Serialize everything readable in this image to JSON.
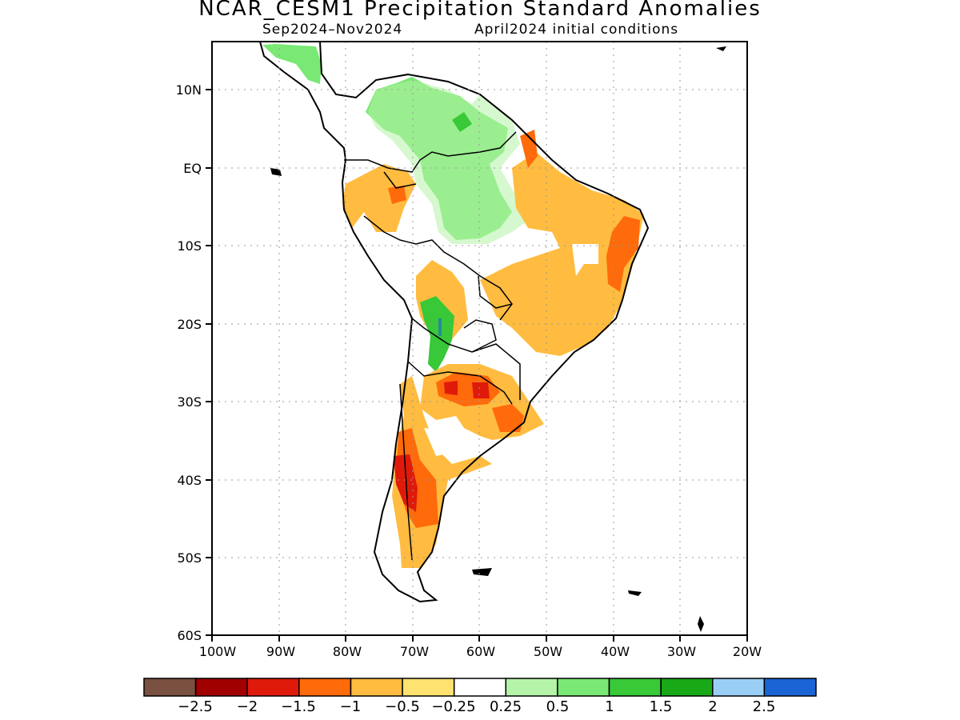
{
  "map": {
    "title": "NCAR_CESM1 Precipitation Standard Anomalies",
    "valid_period": "Sep2024–Nov2024",
    "init_conditions": "April2024 initial conditions",
    "lat_ticks": [
      "10N",
      "EQ",
      "10S",
      "20S",
      "30S",
      "40S",
      "50S",
      "60S"
    ],
    "lon_ticks": [
      "100W",
      "90W",
      "80W",
      "70W",
      "60W",
      "50W",
      "40W",
      "30W",
      "20W"
    ],
    "extent": {
      "lon": [
        -100,
        -20
      ],
      "lat": [
        -60,
        15
      ]
    },
    "grid": "dotted",
    "region": "South America",
    "colorbar": {
      "colors": [
        "#7a5040",
        "#a00000",
        "#e01a0a",
        "#ff6a0a",
        "#ffbc40",
        "#ffe270",
        "#ffffff",
        "#b4f3a8",
        "#7ae874",
        "#38c838",
        "#18a818",
        "#9acff5",
        "#1b64d6"
      ],
      "labels": [
        "−2.5",
        "−2",
        "−1.5",
        "−1",
        "−0.5",
        "−0.25",
        "0.25",
        "0.5",
        "1",
        "1.5",
        "2",
        "2.5"
      ]
    }
  }
}
